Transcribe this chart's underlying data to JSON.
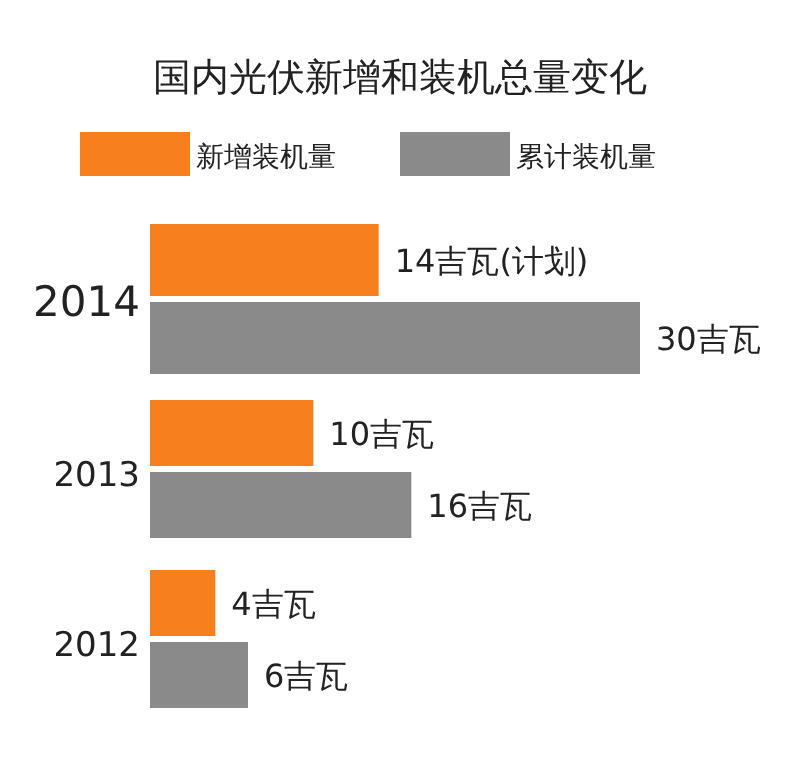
{
  "chart_data": {
    "type": "bar",
    "orientation": "horizontal",
    "title": "国内光伏新增和装机总量变化",
    "categories": [
      "2014",
      "2013",
      "2012"
    ],
    "legend": "top",
    "series": [
      {
        "name": "新增装机量",
        "color": "#f77f1e",
        "values": [
          14,
          10,
          4
        ],
        "value_labels": [
          "14吉瓦(计划)",
          "10吉瓦",
          "4吉瓦"
        ]
      },
      {
        "name": "累计装机量",
        "color": "#8a8a8a",
        "values": [
          30,
          16,
          6
        ],
        "value_labels": [
          "30吉瓦",
          "16吉瓦",
          "6吉瓦"
        ]
      }
    ]
  }
}
